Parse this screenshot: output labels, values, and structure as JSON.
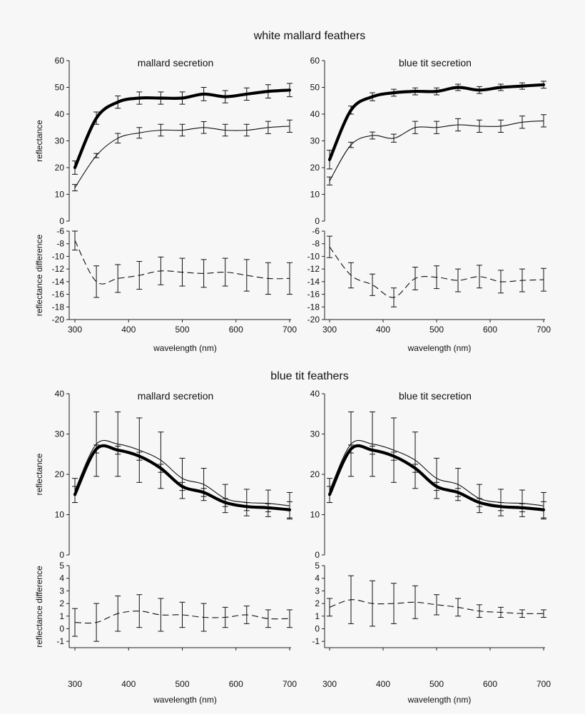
{
  "chart_data": [
    {
      "section_title": "white mallard feathers",
      "panels": [
        {
          "title": "mallard secretion",
          "type": "line",
          "x": [
            300,
            340,
            380,
            420,
            460,
            500,
            540,
            580,
            620,
            660,
            700
          ],
          "xlabel": "wavelength (nm)",
          "xticks": [
            300,
            400,
            500,
            600,
            700
          ],
          "reflectance": {
            "ylabel": "reflectance",
            "ylim": [
              0,
              60
            ],
            "yticks": [
              0,
              10,
              20,
              30,
              40,
              50,
              60
            ],
            "series": [
              {
                "name": "bold",
                "values": [
                  20,
                  38.5,
                  44.5,
                  46,
                  46,
                  46,
                  47.5,
                  46.5,
                  47.5,
                  48.5,
                  49
                ],
                "errors": [
                  2.5,
                  2.3,
                  2.3,
                  2.3,
                  2.3,
                  2.3,
                  2.5,
                  2.3,
                  2.3,
                  2.5,
                  2.5
                ]
              },
              {
                "name": "thin",
                "values": [
                  12.5,
                  24.5,
                  31,
                  33,
                  34,
                  34,
                  35,
                  34,
                  34,
                  35,
                  35.5
                ],
                "errors": [
                  1.2,
                  0.8,
                  1.8,
                  2,
                  2.2,
                  2.2,
                  2.2,
                  2.2,
                  2.2,
                  2.3,
                  2.3
                ]
              }
            ]
          },
          "difference": {
            "ylabel": "reflectance difference",
            "ylim": [
              -20,
              -6
            ],
            "yticks": [
              -6,
              -8,
              -10,
              -12,
              -14,
              -16,
              -18,
              -20
            ],
            "series": [
              {
                "name": "difference",
                "values": [
                  -7.5,
                  -14,
                  -13.5,
                  -13,
                  -12.3,
                  -12.5,
                  -12.7,
                  -12.5,
                  -13,
                  -13.5,
                  -13.5
                ],
                "errors": [
                  1.5,
                  2.5,
                  2.2,
                  2.2,
                  2.2,
                  2.2,
                  2.2,
                  2.2,
                  2.5,
                  2.5,
                  2.5
                ]
              }
            ]
          }
        },
        {
          "title": "blue tit secretion",
          "type": "line",
          "x": [
            300,
            340,
            380,
            420,
            460,
            500,
            540,
            580,
            620,
            660,
            700
          ],
          "xlabel": "wavelength (nm)",
          "xticks": [
            300,
            400,
            500,
            600,
            700
          ],
          "reflectance": {
            "ylabel": "",
            "ylim": [
              0,
              60
            ],
            "yticks": [
              0,
              10,
              20,
              30,
              40,
              50,
              60
            ],
            "series": [
              {
                "name": "bold",
                "values": [
                  23,
                  41.5,
                  46.5,
                  48,
                  48.5,
                  48.5,
                  50,
                  49,
                  50,
                  50.5,
                  51
                ],
                "errors": [
                  3.5,
                  1.5,
                  1.5,
                  1.3,
                  1.3,
                  1.3,
                  1.2,
                  1.3,
                  1.2,
                  1.2,
                  1.3
                ]
              },
              {
                "name": "thin",
                "values": [
                  15,
                  28.5,
                  32,
                  31,
                  35,
                  35,
                  36,
                  35.5,
                  35.5,
                  37,
                  37.5
                ],
                "errors": [
                  1.5,
                  1,
                  1.3,
                  1.5,
                  2.3,
                  2.3,
                  2.3,
                  2.3,
                  2.3,
                  2.3,
                  2.3
                ]
              }
            ]
          },
          "difference": {
            "ylabel": "",
            "ylim": [
              -20,
              -6
            ],
            "yticks": [
              -6,
              -8,
              -10,
              -12,
              -14,
              -16,
              -18,
              -20
            ],
            "series": [
              {
                "name": "difference",
                "values": [
                  -8.5,
                  -13,
                  -14.5,
                  -16.5,
                  -13.5,
                  -13.3,
                  -13.8,
                  -13.2,
                  -14,
                  -13.8,
                  -13.7
                ],
                "errors": [
                  1.7,
                  2,
                  1.7,
                  1.5,
                  1.8,
                  1.8,
                  1.8,
                  1.8,
                  1.8,
                  1.8,
                  1.8
                ]
              }
            ]
          }
        }
      ]
    },
    {
      "section_title": "blue tit feathers",
      "panels": [
        {
          "title": "mallard secretion",
          "type": "line",
          "x": [
            300,
            340,
            380,
            420,
            460,
            500,
            540,
            580,
            620,
            660,
            700
          ],
          "xlabel": "wavelength (nm)",
          "xticks": [
            300,
            400,
            500,
            600,
            700
          ],
          "reflectance": {
            "ylabel": "reflectance",
            "ylim": [
              0,
              40
            ],
            "yticks": [
              0,
              10,
              20,
              30,
              40
            ],
            "series": [
              {
                "name": "thin",
                "values": [
                  16,
                  27.5,
                  27.5,
                  26,
                  23.5,
                  19,
                  17.5,
                  14,
                  13,
                  12.8,
                  12.2
                ],
                "errors": [
                  3,
                  8,
                  8,
                  8,
                  7,
                  5,
                  4,
                  3.5,
                  3.3,
                  3.3,
                  3.3
                ]
              },
              {
                "name": "bold",
                "values": [
                  15,
                  26.3,
                  26,
                  24.5,
                  21.5,
                  17,
                  15.5,
                  13,
                  12,
                  11.7,
                  11.2
                ],
                "errors": [
                  2,
                  1,
                  1,
                  1,
                  1,
                  1,
                  1,
                  1,
                  1,
                  1,
                  2
                ]
              }
            ]
          },
          "difference": {
            "ylabel": "reflectance difference",
            "ylim": [
              -1.5,
              5
            ],
            "yticks": [
              5,
              4,
              3,
              2,
              1,
              0,
              -1
            ],
            "series": [
              {
                "name": "difference",
                "values": [
                  0.5,
                  0.5,
                  1.2,
                  1.4,
                  1.1,
                  1.1,
                  0.9,
                  0.9,
                  1.1,
                  0.8,
                  0.8
                ],
                "errors": [
                  1.1,
                  1.5,
                  1.4,
                  1.3,
                  1.3,
                  1,
                  1.1,
                  0.8,
                  0.7,
                  0.7,
                  0.7
                ]
              }
            ]
          }
        },
        {
          "title": "blue tit secretion",
          "type": "line",
          "x": [
            300,
            340,
            380,
            420,
            460,
            500,
            540,
            580,
            620,
            660,
            700
          ],
          "xlabel": "wavelength (nm)",
          "xticks": [
            300,
            400,
            500,
            600,
            700
          ],
          "reflectance": {
            "ylabel": "",
            "ylim": [
              0,
              40
            ],
            "yticks": [
              0,
              10,
              20,
              30,
              40
            ],
            "series": [
              {
                "name": "thin",
                "values": [
                  16,
                  27.5,
                  27.5,
                  26,
                  23.5,
                  19,
                  17.5,
                  14,
                  13,
                  12.8,
                  12.2
                ],
                "errors": [
                  3,
                  8,
                  8,
                  8,
                  7,
                  5,
                  4,
                  3.5,
                  3.3,
                  3.3,
                  3.3
                ]
              },
              {
                "name": "bold",
                "values": [
                  15,
                  26.3,
                  26,
                  24.5,
                  21.5,
                  17,
                  15.5,
                  13,
                  12,
                  11.7,
                  11.2
                ],
                "errors": [
                  2,
                  1,
                  1,
                  1,
                  1,
                  1,
                  1,
                  1,
                  1,
                  1,
                  2
                ]
              }
            ]
          },
          "difference": {
            "ylabel": "",
            "ylim": [
              -1.5,
              5
            ],
            "yticks": [
              5,
              4,
              3,
              2,
              1,
              0,
              -1
            ],
            "series": [
              {
                "name": "difference",
                "values": [
                  1.7,
                  2.3,
                  2,
                  2,
                  2.1,
                  1.9,
                  1.7,
                  1.4,
                  1.3,
                  1.2,
                  1.2
                ],
                "errors": [
                  0.7,
                  1.9,
                  1.8,
                  1.6,
                  1.3,
                  0.8,
                  0.7,
                  0.5,
                  0.4,
                  0.3,
                  0.3
                ]
              }
            ]
          }
        }
      ]
    }
  ]
}
